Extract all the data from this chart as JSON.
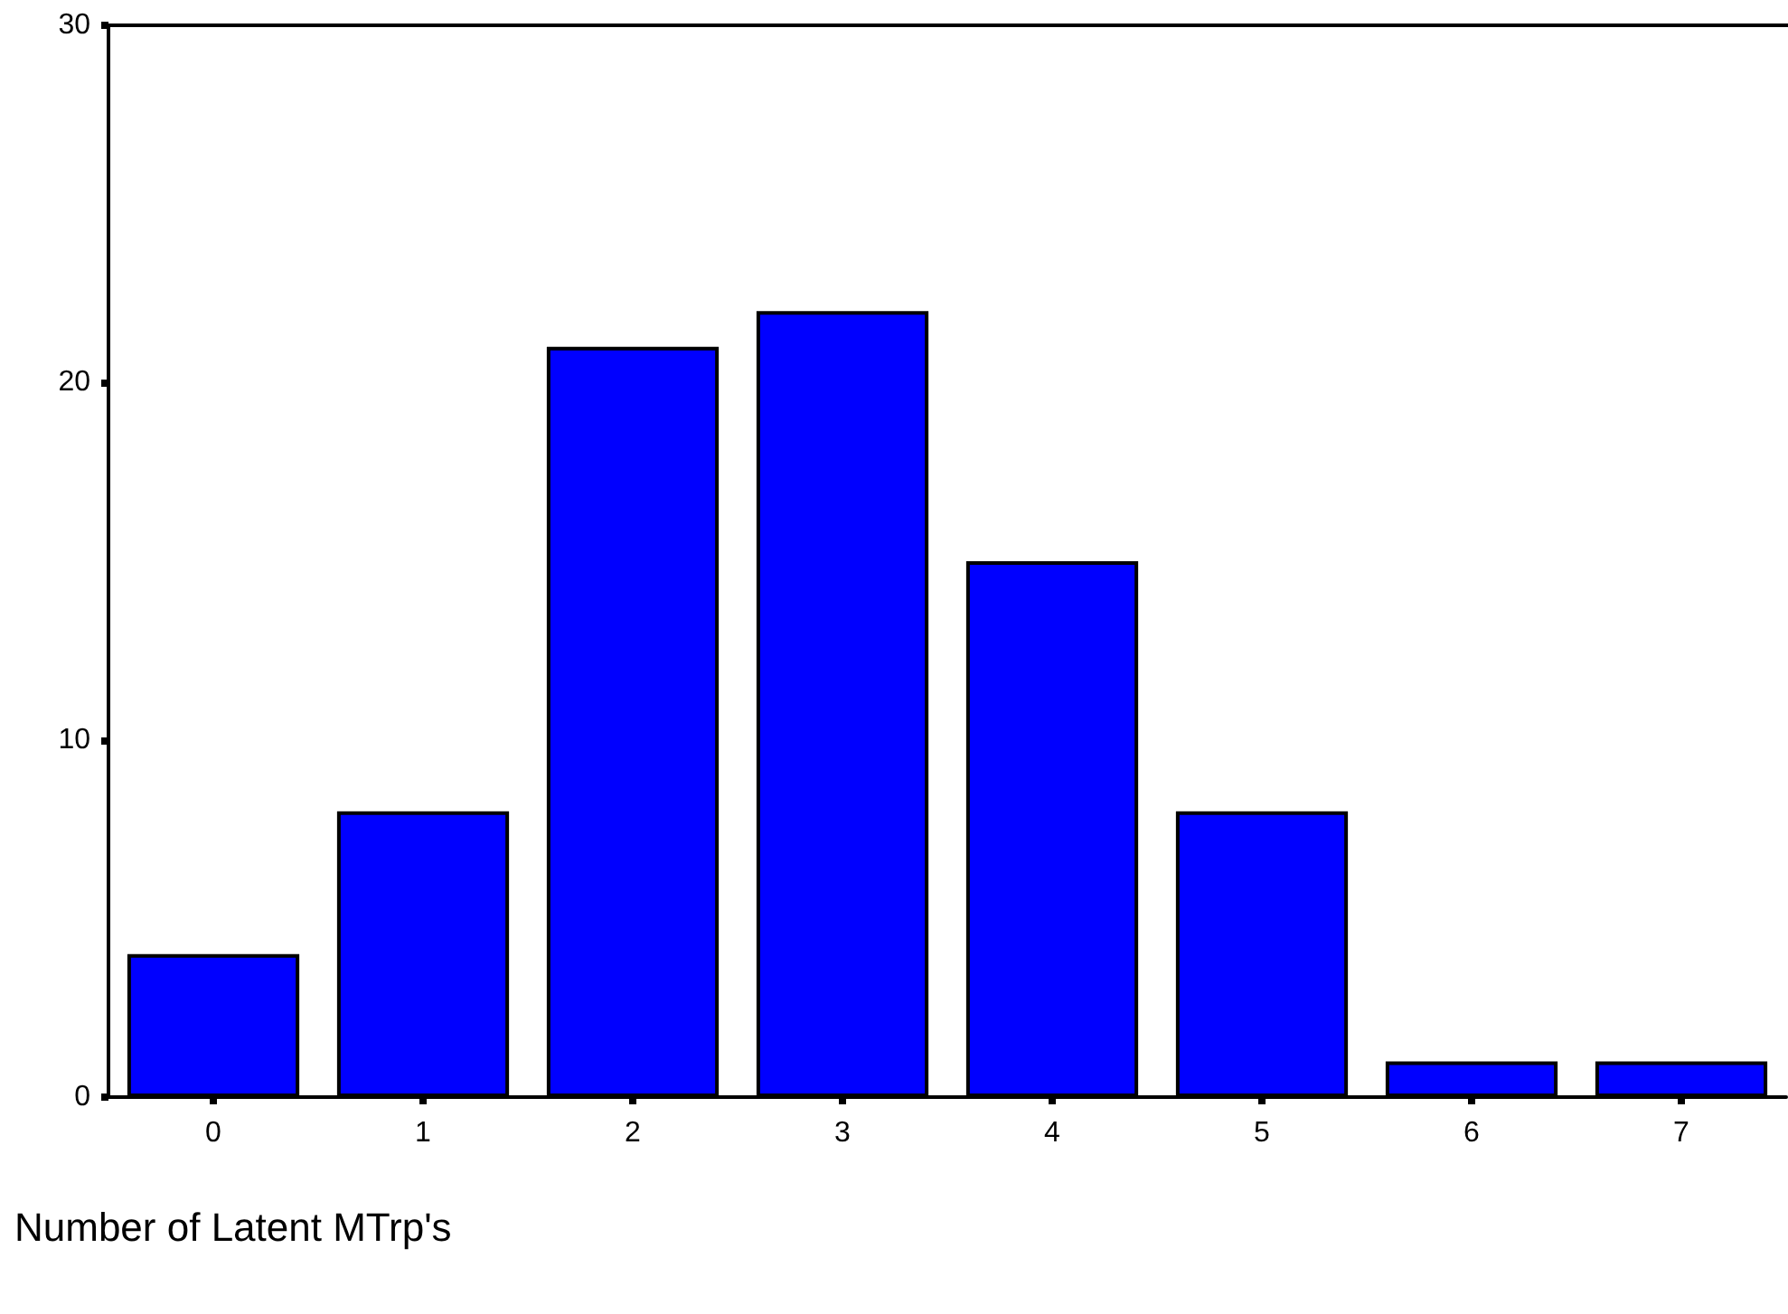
{
  "chart_data": {
    "type": "bar",
    "xlabel": "Number of Latent MTrp's",
    "categories": [
      "0",
      "1",
      "2",
      "3",
      "4",
      "5",
      "6",
      "7"
    ],
    "values": [
      4,
      8,
      21,
      22,
      15,
      8,
      1,
      1
    ],
    "color": "#0000ff",
    "ylim": [
      0,
      30
    ],
    "yticks": [
      0,
      10,
      20,
      30
    ],
    "grid": false
  }
}
